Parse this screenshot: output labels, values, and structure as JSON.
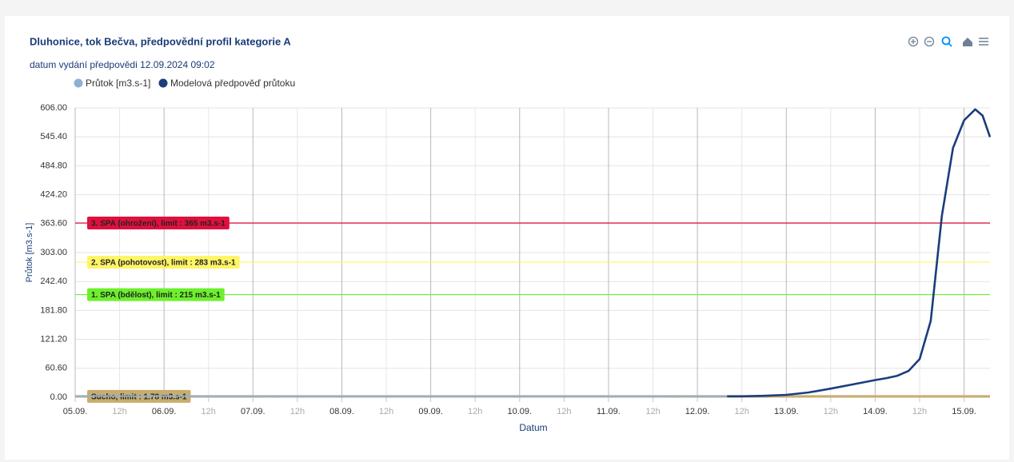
{
  "chart_data": {
    "type": "line",
    "title": "Dluhonice, tok Bečva, předpovědní profil kategorie A",
    "subtitle": "datum vydání předpovědi 12.09.2024 09:02",
    "y_label": "Průtok [m3.s-1]",
    "x_label": "Datum",
    "xlim": [
      "2024-09-05 00:00",
      "2024-09-15 07:00"
    ],
    "xticks": [
      {
        "value": "2024-09-05 00:00",
        "label": "05.09."
      },
      {
        "value": "2024-09-05 12:00",
        "label": "12h"
      },
      {
        "value": "2024-09-06 00:00",
        "label": "06.09."
      },
      {
        "value": "2024-09-06 12:00",
        "label": "12h"
      },
      {
        "value": "2024-09-07 00:00",
        "label": "07.09."
      },
      {
        "value": "2024-09-07 12:00",
        "label": "12h"
      },
      {
        "value": "2024-09-08 00:00",
        "label": "08.09."
      },
      {
        "value": "2024-09-08 12:00",
        "label": "12h"
      },
      {
        "value": "2024-09-09 00:00",
        "label": "09.09."
      },
      {
        "value": "2024-09-09 12:00",
        "label": "12h"
      },
      {
        "value": "2024-09-10 00:00",
        "label": "10.09."
      },
      {
        "value": "2024-09-10 12:00",
        "label": "12h"
      },
      {
        "value": "2024-09-11 00:00",
        "label": "11.09."
      },
      {
        "value": "2024-09-11 12:00",
        "label": "12h"
      },
      {
        "value": "2024-09-12 00:00",
        "label": "12.09."
      },
      {
        "value": "2024-09-12 12:00",
        "label": "12h"
      },
      {
        "value": "2024-09-13 00:00",
        "label": "13.09."
      },
      {
        "value": "2024-09-13 12:00",
        "label": "12h"
      },
      {
        "value": "2024-09-14 00:00",
        "label": "14.09."
      },
      {
        "value": "2024-09-14 12:00",
        "label": "12h"
      },
      {
        "value": "2024-09-15 00:00",
        "label": "15.09."
      }
    ],
    "ylim": [
      0,
      606
    ],
    "yticks": [
      {
        "value": 0,
        "label": "0.00"
      },
      {
        "value": 60.6,
        "label": "60.60"
      },
      {
        "value": 121.2,
        "label": "121.20"
      },
      {
        "value": 181.8,
        "label": "181.80"
      },
      {
        "value": 242.4,
        "label": "242.40"
      },
      {
        "value": 303,
        "label": "303.00"
      },
      {
        "value": 363.6,
        "label": "363.60"
      },
      {
        "value": 424.2,
        "label": "424.20"
      },
      {
        "value": 484.8,
        "label": "484.80"
      },
      {
        "value": 545.4,
        "label": "545.40"
      },
      {
        "value": 606,
        "label": "606.00"
      }
    ],
    "grid": true,
    "series": [
      {
        "name": "Průtok [m3.s-1]",
        "color": "#8fb0d6",
        "x": [
          "2024-09-05 00:00",
          "2024-09-05 12:00",
          "2024-09-06 00:00",
          "2024-09-06 12:00",
          "2024-09-07 00:00",
          "2024-09-07 12:00",
          "2024-09-08 00:00",
          "2024-09-08 12:00",
          "2024-09-09 00:00",
          "2024-09-09 12:00",
          "2024-09-10 00:00",
          "2024-09-10 12:00",
          "2024-09-11 00:00",
          "2024-09-11 12:00",
          "2024-09-12 00:00",
          "2024-09-12 12:00"
        ],
        "values": [
          2.5,
          2.4,
          2.4,
          2.3,
          2.3,
          2.2,
          2.2,
          2.1,
          2.1,
          2.0,
          2.2,
          2.0,
          2.0,
          2.1,
          2.3,
          2.4
        ]
      },
      {
        "name": "Modelová předpověď průtoku",
        "color": "#1c3c7c",
        "x": [
          "2024-09-12 08:00",
          "2024-09-12 12:00",
          "2024-09-12 18:00",
          "2024-09-13 00:00",
          "2024-09-13 06:00",
          "2024-09-13 12:00",
          "2024-09-13 18:00",
          "2024-09-14 00:00",
          "2024-09-14 03:00",
          "2024-09-14 06:00",
          "2024-09-14 09:00",
          "2024-09-14 12:00",
          "2024-09-14 15:00",
          "2024-09-14 18:00",
          "2024-09-14 21:00",
          "2024-09-15 00:00",
          "2024-09-15 03:00",
          "2024-09-15 05:00",
          "2024-09-15 07:00"
        ],
        "values": [
          2,
          2,
          3,
          5,
          10,
          18,
          27,
          36,
          40,
          45,
          55,
          80,
          160,
          380,
          522,
          580,
          603,
          590,
          545
        ]
      }
    ],
    "plot_lines": [
      {
        "value": 365,
        "label": "3. SPA (ohrožení), limit : 365 m3.s-1",
        "color": "#e0103e"
      },
      {
        "value": 283,
        "label": "2. SPA (pohotovost), limit : 283 m3.s-1",
        "color": "#fff566"
      },
      {
        "value": 215,
        "label": "1. SPA (bdělost), limit : 215 m3.s-1",
        "color": "#6cf02c"
      },
      {
        "value": 1.78,
        "label": "Sucho, limit : 1.78 m3.s-1",
        "color": "#c8ad6e"
      }
    ]
  }
}
